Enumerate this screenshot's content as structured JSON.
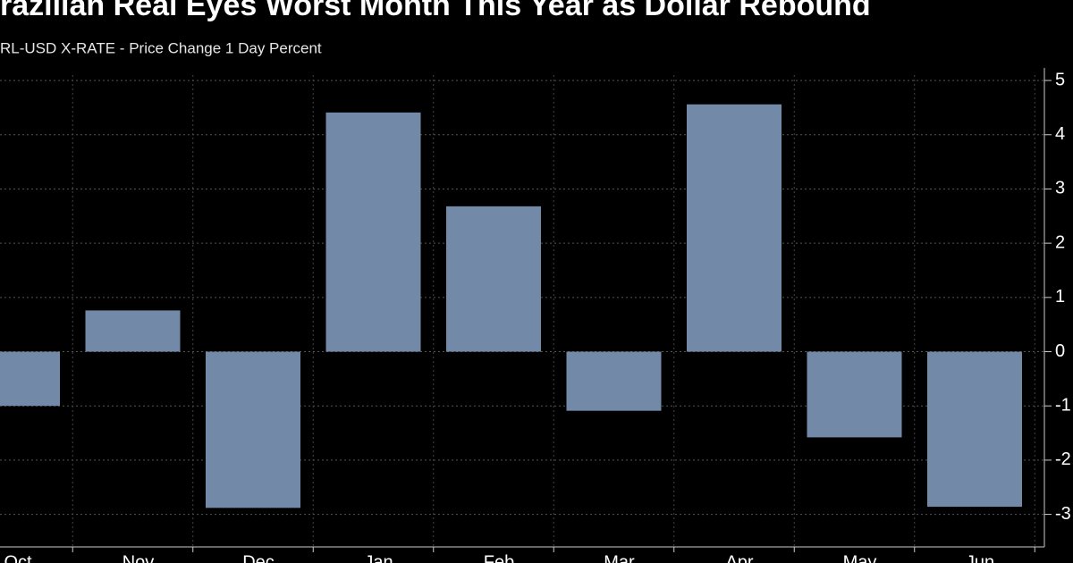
{
  "chart_data": {
    "type": "bar",
    "title": "razilian Real Eyes Worst Month This Year as Dollar Rebound",
    "subtitle": "RL-USD X-RATE - Price Change 1 Day Percent",
    "categories": [
      "Oct",
      "Nov",
      "Dec",
      "Jan",
      "Feb",
      "Mar",
      "Apr",
      "May",
      "Jun"
    ],
    "values": [
      -1.0,
      0.76,
      -2.88,
      4.41,
      2.68,
      -1.09,
      4.56,
      -1.58,
      -2.86
    ],
    "color": "#7389a8",
    "ylim": [
      -3.6,
      5.1
    ],
    "yticks": [
      -3,
      -2,
      -1,
      0,
      1,
      2,
      3,
      4,
      5
    ],
    "grid": true
  }
}
